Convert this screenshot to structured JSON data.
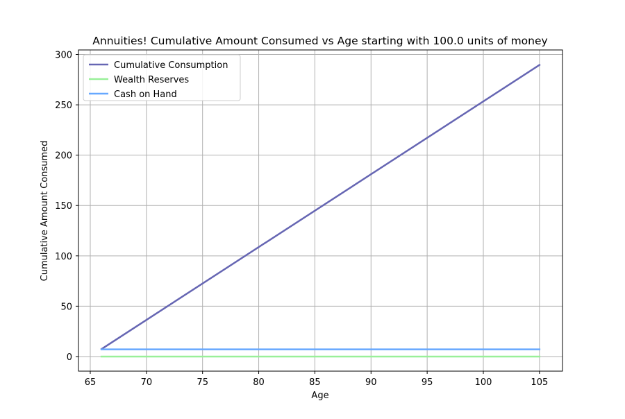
{
  "chart_data": {
    "type": "line",
    "title": "Annuities! Cumulative Amount Consumed vs Age starting with 100.0 units of money",
    "xlabel": "Age",
    "ylabel": "Cumulative Amount Consumed",
    "xlim": [
      63.95,
      107.05
    ],
    "ylim": [
      -14.5,
      304.5
    ],
    "xticks": [
      65,
      70,
      75,
      80,
      85,
      90,
      95,
      100,
      105
    ],
    "yticks": [
      0,
      50,
      100,
      150,
      200,
      250,
      300
    ],
    "grid": true,
    "legend_placement": "upper-left",
    "series": [
      {
        "name": "Cumulative Consumption",
        "color": "#6666b3",
        "x": [
          66,
          105
        ],
        "y": [
          7.4,
          289.6
        ]
      },
      {
        "name": "Wealth Reserves",
        "color": "#99f099",
        "x": [
          66,
          105
        ],
        "y": [
          0,
          0
        ]
      },
      {
        "name": "Cash on Hand",
        "color": "#66a8ff",
        "x": [
          66,
          105
        ],
        "y": [
          7.1,
          7.1
        ]
      }
    ]
  }
}
